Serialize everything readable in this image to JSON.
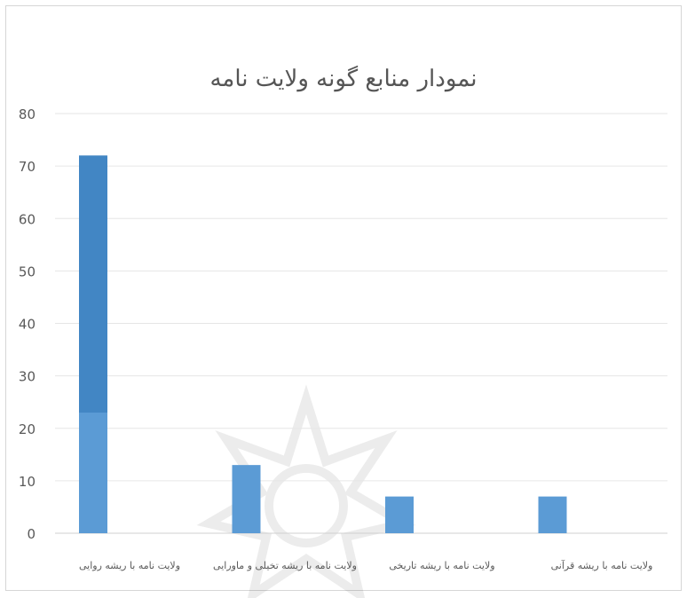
{
  "chart_data": {
    "type": "bar",
    "title": "نمودار منابع گونه ولایت نامه",
    "categories": [
      "ولایت نامه با  ریشه روایی",
      "ولایت نامه با ریشه تخیلی و ماورایی",
      "ولایت نامه با ریشه تاریخی",
      "ولایت نامه با ریشه قرآنی"
    ],
    "values": [
      72,
      13,
      7,
      7
    ],
    "ylim": [
      0,
      80
    ],
    "yticks": [
      0,
      10,
      20,
      30,
      40,
      50,
      60,
      70,
      80
    ],
    "grid": true,
    "legend": "none",
    "colors": {
      "bar": "#5b9bd5",
      "bar_dark": "#2e75b6",
      "grid": "#e6e6e6",
      "text": "#595959"
    }
  }
}
